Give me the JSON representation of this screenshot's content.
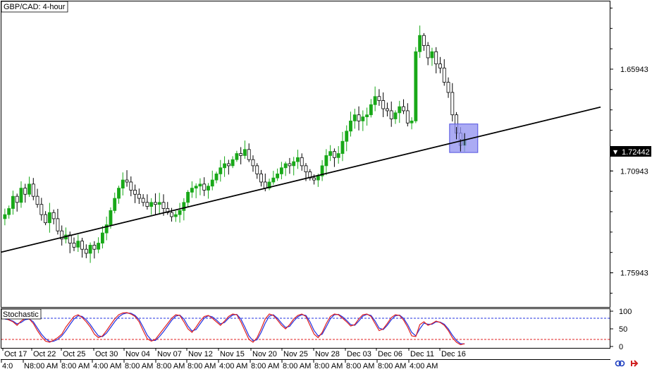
{
  "chart_title": "GBP/CAD: 4-hour",
  "indicator_title": "Stochastic",
  "current_price": "1.72442",
  "current_price_marker": "▼",
  "right_axis_ticks": [
    "1.75943",
    "1.70943",
    "1.65943"
  ],
  "stoch_axis_ticks": [
    "100",
    "50",
    "0"
  ],
  "date_labels": [
    "Oct 17",
    "Oct 22",
    "Oct 25",
    "Oct 30",
    "Nov 04",
    "Nov 07",
    "Nov 12",
    "Nov 15",
    "Nov 20",
    "Nov 25",
    "Nov 28",
    "Dec 03",
    "Dec 06",
    "Dec 11",
    "Dec 16"
  ],
  "time_labels": [
    "4:0",
    "N8:00 AM",
    "8:00 AM",
    "4:00 AM",
    "8:00 AM",
    "8:00 AM",
    "8:00 AM",
    "4:00 AM",
    "8:00 AM",
    "8:00 AM",
    "8:00 AM",
    "8:00 AM",
    "8:00 AM",
    "4:00 AM"
  ],
  "colors": {
    "bull_candle": "#18a818",
    "bear_candle": "#000000",
    "trendline": "#000000",
    "highlight_fill": "#8f8ff0",
    "highlight_stroke": "#5050e0",
    "stoch_main": "#e02020",
    "stoch_signal": "#2030e0",
    "level_80": "#2030e0",
    "level_20": "#e02020"
  },
  "icons": [
    "link-icon",
    "arrow-icon"
  ],
  "chart_data": {
    "type": "candlestick",
    "title": "GBP/CAD: 4-hour",
    "ylim": [
      1.643,
      1.792
    ],
    "y_ticks": [
      1.65943,
      1.70943,
      1.75943
    ],
    "closes": [
      1.688,
      1.691,
      1.697,
      1.694,
      1.701,
      1.698,
      1.703,
      1.697,
      1.693,
      1.688,
      1.684,
      1.689,
      1.686,
      1.68,
      1.676,
      1.678,
      1.674,
      1.672,
      1.675,
      1.671,
      1.669,
      1.673,
      1.671,
      1.674,
      1.679,
      1.683,
      1.69,
      1.696,
      1.701,
      1.705,
      1.704,
      1.7,
      1.698,
      1.696,
      1.694,
      1.692,
      1.694,
      1.693,
      1.694,
      1.691,
      1.689,
      1.687,
      1.688,
      1.69,
      1.694,
      1.699,
      1.701,
      1.702,
      1.703,
      1.7,
      1.702,
      1.705,
      1.708,
      1.711,
      1.713,
      1.712,
      1.715,
      1.718,
      1.717,
      1.72,
      1.715,
      1.712,
      1.708,
      1.704,
      1.701,
      1.704,
      1.706,
      1.708,
      1.711,
      1.713,
      1.712,
      1.714,
      1.716,
      1.712,
      1.709,
      1.706,
      1.705,
      1.707,
      1.712,
      1.717,
      1.719,
      1.716,
      1.718,
      1.724,
      1.729,
      1.734,
      1.737,
      1.734,
      1.736,
      1.737,
      1.742,
      1.746,
      1.744,
      1.74,
      1.739,
      1.735,
      1.738,
      1.741,
      1.739,
      1.733,
      1.734,
      1.768,
      1.776,
      1.771,
      1.765,
      1.768,
      1.762,
      1.76,
      1.753,
      1.748,
      1.737,
      1.728,
      1.722,
      1.725
    ],
    "trendline": {
      "start": 1.6695,
      "end": 1.7408
    },
    "highlight_price_range": [
      1.7185,
      1.7325
    ],
    "stochastic": {
      "ylim": [
        0,
        100
      ],
      "levels": [
        80,
        20
      ],
      "main": [
        82,
        75,
        70,
        60,
        72,
        80,
        78,
        65,
        45,
        28,
        15,
        12,
        18,
        25,
        35,
        55,
        70,
        85,
        90,
        82,
        70,
        55,
        35,
        25,
        30,
        45,
        62,
        78,
        90,
        95,
        96,
        92,
        85,
        70,
        45,
        22,
        15,
        20,
        35,
        50,
        65,
        80,
        90,
        88,
        70,
        50,
        40,
        55,
        72,
        85,
        88,
        80,
        70,
        60,
        72,
        85,
        92,
        90,
        70,
        45,
        20,
        12,
        25,
        50,
        78,
        92,
        88,
        75,
        60,
        50,
        62,
        78,
        88,
        92,
        85,
        60,
        35,
        25,
        40,
        65,
        85,
        92,
        90,
        80,
        70,
        58,
        62,
        78,
        90,
        92,
        85,
        65,
        45,
        50,
        65,
        82,
        90,
        88,
        75,
        55,
        30,
        28,
        62,
        70,
        60,
        65,
        72,
        68,
        60,
        45,
        25,
        12,
        5,
        8
      ],
      "signal": [
        78,
        76,
        72,
        64,
        68,
        76,
        78,
        70,
        52,
        35,
        22,
        14,
        15,
        20,
        30,
        45,
        62,
        78,
        87,
        85,
        76,
        62,
        45,
        30,
        28,
        38,
        54,
        70,
        84,
        92,
        95,
        94,
        88,
        76,
        55,
        32,
        18,
        17,
        28,
        42,
        58,
        74,
        86,
        89,
        78,
        58,
        44,
        48,
        64,
        80,
        87,
        84,
        75,
        64,
        68,
        80,
        89,
        91,
        78,
        55,
        30,
        16,
        19,
        40,
        66,
        86,
        90,
        80,
        66,
        54,
        57,
        72,
        84,
        90,
        88,
        70,
        45,
        30,
        35,
        56,
        78,
        90,
        91,
        84,
        74,
        62,
        60,
        72,
        86,
        91,
        88,
        72,
        52,
        48,
        60,
        76,
        87,
        89,
        80,
        62,
        40,
        30,
        50,
        66,
        63,
        63,
        70,
        69,
        63,
        50,
        32,
        17,
        8,
        7
      ]
    }
  }
}
